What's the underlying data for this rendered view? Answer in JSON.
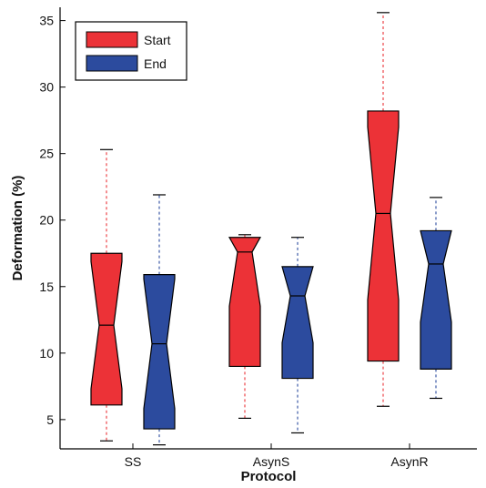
{
  "chart_data": {
    "type": "boxplot",
    "title": "",
    "xlabel": "Protocol",
    "ylabel": "Deformation (%)",
    "ylim": [
      2.8,
      36
    ],
    "yticks": [
      5,
      10,
      15,
      20,
      25,
      30,
      35
    ],
    "categories": [
      "SS",
      "AsynS",
      "AsynR"
    ],
    "notched": true,
    "grid": false,
    "legend_position": "top-left",
    "series": [
      {
        "name": "Start",
        "color": "#ec3237",
        "boxes": [
          {
            "whisker_low": 3.4,
            "q1": 6.1,
            "median": 12.1,
            "q3": 17.5,
            "whisker_high": 25.3
          },
          {
            "whisker_low": 5.1,
            "q1": 9.0,
            "median": 17.6,
            "q3": 18.7,
            "whisker_high": 18.9
          },
          {
            "whisker_low": 6.0,
            "q1": 9.4,
            "median": 20.5,
            "q3": 28.2,
            "whisker_high": 35.6
          }
        ]
      },
      {
        "name": "End",
        "color": "#2c4b9e",
        "boxes": [
          {
            "whisker_low": 3.1,
            "q1": 4.3,
            "median": 10.7,
            "q3": 15.9,
            "whisker_high": 21.9
          },
          {
            "whisker_low": 4.0,
            "q1": 8.1,
            "median": 14.3,
            "q3": 16.5,
            "whisker_high": 18.7
          },
          {
            "whisker_low": 6.6,
            "q1": 8.8,
            "median": 16.7,
            "q3": 19.2,
            "whisker_high": 21.7
          }
        ]
      }
    ]
  }
}
